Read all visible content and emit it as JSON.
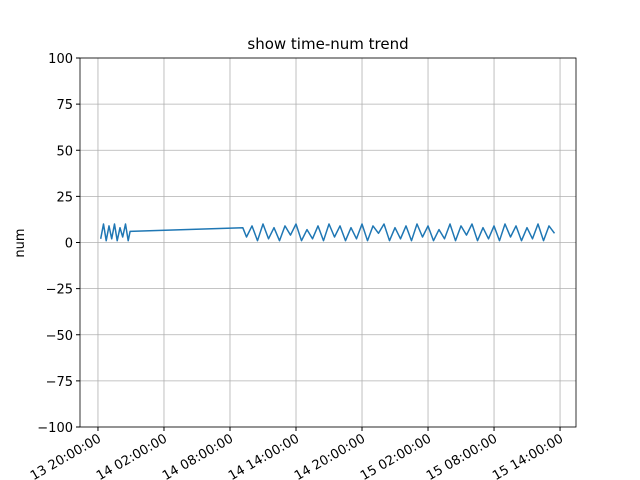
{
  "chart_data": {
    "type": "line",
    "title": "show time-num trend",
    "ylabel": "num",
    "color": "#1f77b4",
    "grid": true,
    "x": [
      "13 20:15",
      "13 20:30",
      "13 20:45",
      "13 21:00",
      "13 21:15",
      "13 21:30",
      "13 21:45",
      "13 22:00",
      "13 22:15",
      "13 22:30",
      "13 22:45",
      "13 22:55",
      "14 09:10",
      "14 09:30",
      "14 10:00",
      "14 10:30",
      "14 11:00",
      "14 11:30",
      "14 12:00",
      "14 12:30",
      "14 13:00",
      "14 13:30",
      "14 14:00",
      "14 14:30",
      "14 15:00",
      "14 15:30",
      "14 16:00",
      "14 16:30",
      "14 17:00",
      "14 17:30",
      "14 18:00",
      "14 18:30",
      "14 19:00",
      "14 19:30",
      "14 20:00",
      "14 20:30",
      "14 21:00",
      "14 21:30",
      "14 22:00",
      "14 22:30",
      "14 23:00",
      "14 23:30",
      "15 00:00",
      "15 00:30",
      "15 01:00",
      "15 01:30",
      "15 02:00",
      "15 02:30",
      "15 03:00",
      "15 03:30",
      "15 04:00",
      "15 04:30",
      "15 05:00",
      "15 05:30",
      "15 06:00",
      "15 06:30",
      "15 07:00",
      "15 07:30",
      "15 08:00",
      "15 08:30",
      "15 09:00",
      "15 09:30",
      "15 10:00",
      "15 10:30",
      "15 11:00",
      "15 11:30",
      "15 12:00",
      "15 12:30",
      "15 13:00",
      "15 13:30"
    ],
    "values": [
      2,
      10,
      1,
      9,
      2,
      10,
      1,
      8,
      3,
      10,
      1,
      6,
      8,
      3,
      9,
      1,
      10,
      2,
      8,
      1,
      9,
      4,
      10,
      1,
      7,
      2,
      9,
      1,
      10,
      3,
      9,
      1,
      8,
      2,
      10,
      1,
      9,
      5,
      10,
      1,
      8,
      2,
      9,
      1,
      10,
      3,
      9,
      1,
      7,
      2,
      10,
      1,
      9,
      4,
      10,
      1,
      8,
      2,
      9,
      1,
      10,
      3,
      9,
      1,
      8,
      2,
      10,
      1,
      9,
      5
    ],
    "xlim": [
      "13 18:22",
      "15 15:27"
    ],
    "xticks": [
      {
        "value": "13 20:00",
        "label": "13 20:00:00"
      },
      {
        "value": "14 02:00",
        "label": "14 02:00:00"
      },
      {
        "value": "14 08:00",
        "label": "14 08:00:00"
      },
      {
        "value": "14 14:00",
        "label": "14 14:00:00"
      },
      {
        "value": "14 20:00",
        "label": "14 20:00:00"
      },
      {
        "value": "15 02:00",
        "label": "15 02:00:00"
      },
      {
        "value": "15 08:00",
        "label": "15 08:00:00"
      },
      {
        "value": "15 14:00",
        "label": "15 14:00:00"
      }
    ],
    "ylim": [
      -100,
      100
    ],
    "yticks": [
      {
        "value": -100,
        "label": "−100"
      },
      {
        "value": -75,
        "label": "−75"
      },
      {
        "value": -50,
        "label": "−50"
      },
      {
        "value": -25,
        "label": "−25"
      },
      0,
      25,
      50,
      75,
      100
    ]
  }
}
